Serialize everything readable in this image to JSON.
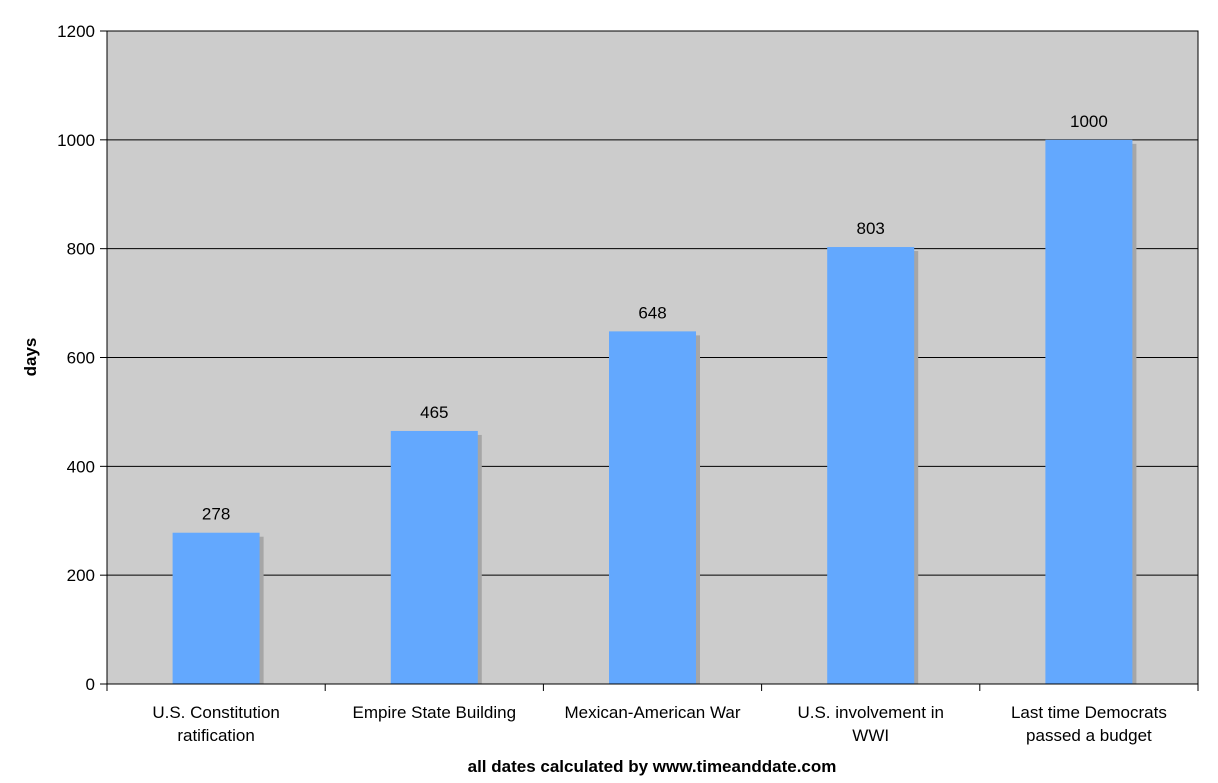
{
  "chart_data": {
    "type": "bar",
    "title": "",
    "xlabel": "all dates calculated by www.timeanddate.com",
    "ylabel": "days",
    "ylim": [
      0,
      1200
    ],
    "yticks": [
      0,
      200,
      400,
      600,
      800,
      1000,
      1200
    ],
    "grid": true,
    "categories": [
      [
        "U.S. Constitution",
        "ratification"
      ],
      [
        "Empire State Building"
      ],
      [
        "Mexican-American War"
      ],
      [
        "U.S. involvement in",
        "WWI"
      ],
      [
        "Last time Democrats",
        "passed a budget"
      ]
    ],
    "values": [
      278,
      465,
      648,
      803,
      1000
    ],
    "data_labels": [
      "278",
      "465",
      "648",
      "803",
      "1000"
    ],
    "colors": {
      "bar": "#63a8fe",
      "bar_shadow": "#a6a6a6",
      "plot_background": "#cccccc",
      "gridline": "#000000"
    }
  }
}
